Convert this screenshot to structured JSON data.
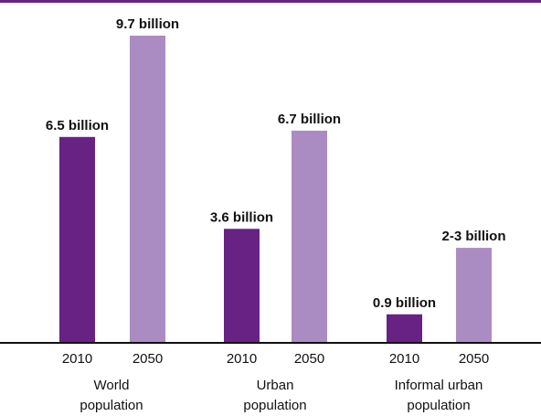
{
  "chart_data": {
    "type": "bar",
    "title": "",
    "ylim": [
      0,
      10.5
    ],
    "grid": false,
    "legend": "none",
    "groups": [
      {
        "label_lines": [
          "World",
          "population"
        ],
        "bars": [
          {
            "year": "2010",
            "value": 6.5,
            "label": "6.5 billion"
          },
          {
            "year": "2050",
            "value": 9.7,
            "label": "9.7 billion"
          }
        ]
      },
      {
        "label_lines": [
          "Urban",
          "population"
        ],
        "bars": [
          {
            "year": "2010",
            "value": 3.6,
            "label": "3.6 billion"
          },
          {
            "year": "2050",
            "value": 6.7,
            "label": "6.7 billion"
          }
        ]
      },
      {
        "label_lines": [
          "Informal urban",
          "population"
        ],
        "bars": [
          {
            "year": "2010",
            "value": 0.9,
            "label": "0.9 billion"
          },
          {
            "year": "2050",
            "value": 3.0,
            "label": "2-3 billion"
          }
        ]
      }
    ],
    "colors": {
      "2010": "#672283",
      "2050": "#ab8cc2",
      "top_rule": "#672283",
      "baseline": "#111111"
    }
  }
}
